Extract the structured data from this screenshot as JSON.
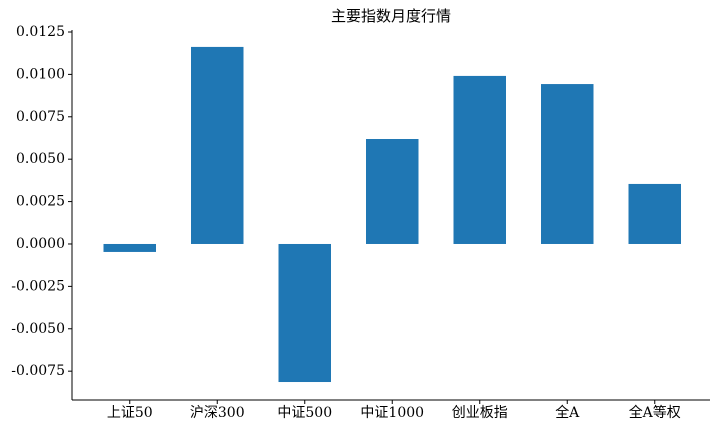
{
  "chart_data": {
    "type": "bar",
    "title": "主要指数月度行情",
    "categories": [
      "上证50",
      "沪深300",
      "中证500",
      "中证1000",
      "创业板指",
      "全A",
      "全A等权"
    ],
    "values": [
      -0.00047,
      0.01162,
      -0.00814,
      0.00619,
      0.00991,
      0.00943,
      0.00354
    ],
    "color": "#1f77b4",
    "ylim": [
      -0.0092,
      0.0126
    ],
    "yticks": [
      -0.0075,
      {
        "value": -0.005,
        "label": "-0.0050"
      },
      -0.0025,
      {
        "value": 0,
        "label": "0.0000"
      },
      0.0025,
      {
        "value": 0.005,
        "label": "0.0050"
      },
      0.0075,
      {
        "value": 0.01,
        "label": "0.0100"
      },
      0.0125
    ],
    "grid": false
  }
}
